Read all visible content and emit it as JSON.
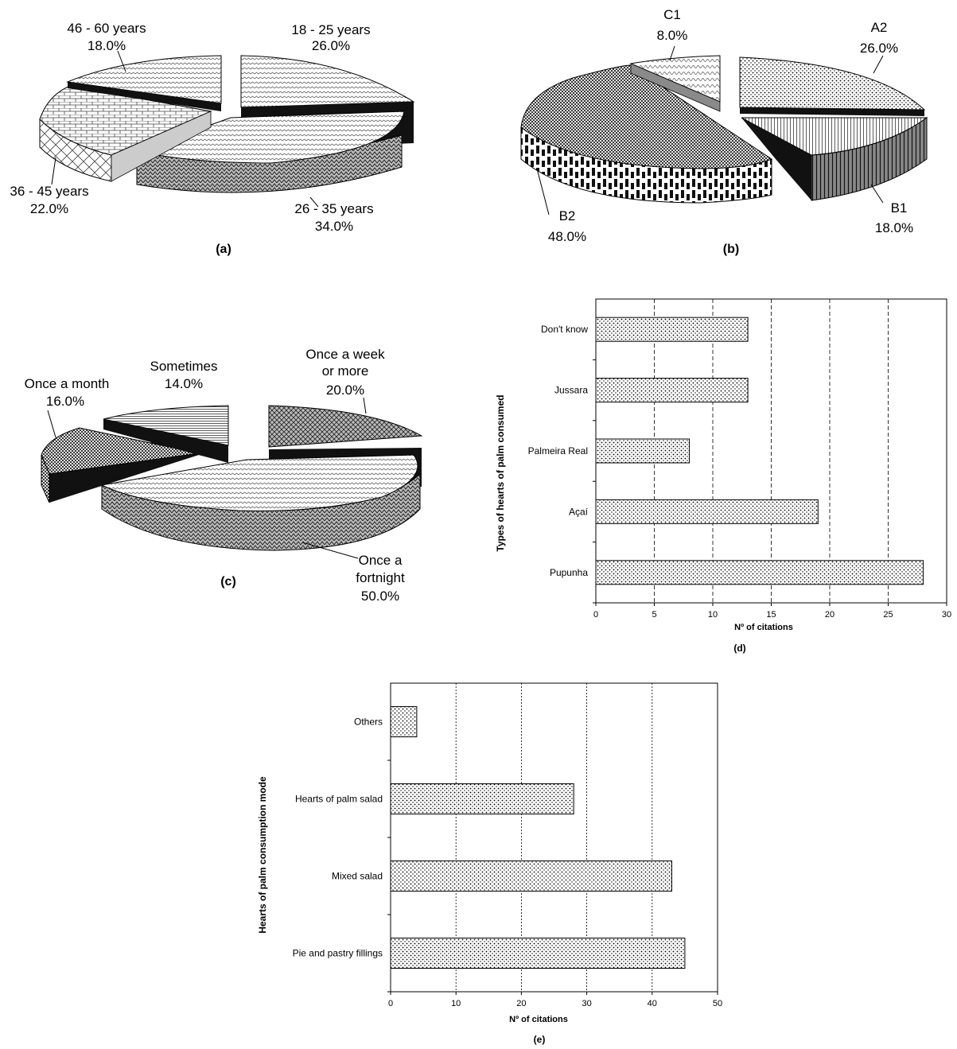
{
  "chart_data": [
    {
      "type": "pie",
      "caption": "(a)",
      "categories": [
        "18 - 25 years",
        "26 - 35 years",
        "36 - 45 years",
        "46 - 60 years"
      ],
      "values": [
        26.0,
        34.0,
        22.0,
        18.0
      ],
      "value_labels": [
        "26.0%",
        "34.0%",
        "22.0%",
        "18.0%"
      ],
      "style": "3D exploded pie, hatched patterns"
    },
    {
      "type": "pie",
      "caption": "(b)",
      "categories": [
        "A2",
        "B1",
        "B2",
        "C1"
      ],
      "values": [
        26.0,
        18.0,
        48.0,
        8.0
      ],
      "value_labels": [
        "26.0%",
        "18.0%",
        "48.0%",
        "8.0%"
      ],
      "style": "3D exploded pie, hatched patterns"
    },
    {
      "type": "pie",
      "caption": "(c)",
      "categories": [
        "Once a week or more",
        "Once a fortnight",
        "Once a month",
        "Sometimes"
      ],
      "label_lines": [
        [
          "Once a week",
          "or more"
        ],
        [
          "Once a",
          "fortnight"
        ],
        [
          "Once a month"
        ],
        [
          "Sometimes"
        ]
      ],
      "values": [
        20.0,
        50.0,
        16.0,
        14.0
      ],
      "value_labels": [
        "20.0%",
        "50.0%",
        "16.0%",
        "14.0%"
      ],
      "style": "3D exploded pie, hatched patterns"
    },
    {
      "type": "bar",
      "orientation": "horizontal",
      "caption": "(d)",
      "categories": [
        "Pupunha",
        "Açaí",
        "Palmeira Real",
        "Jussara",
        "Don't know"
      ],
      "values": [
        28,
        19,
        8,
        13,
        13
      ],
      "xlabel": "Nº of citations",
      "ylabel": "Types of hearts of palm consumed",
      "xlim": [
        0,
        30
      ],
      "xticks": [
        0,
        5,
        10,
        15,
        20,
        25,
        30
      ],
      "grid": "vertical dashed"
    },
    {
      "type": "bar",
      "orientation": "horizontal",
      "caption": "(e)",
      "categories": [
        "Pie and pastry fillings",
        "Mixed salad",
        "Hearts of palm salad",
        "Others"
      ],
      "values": [
        45,
        43,
        28,
        4
      ],
      "xlabel": "Nº of citations",
      "ylabel": "Hearts of palm consumption mode",
      "xlim": [
        0,
        50
      ],
      "xticks": [
        0,
        10,
        20,
        30,
        40,
        50
      ],
      "grid": "vertical dotted"
    }
  ]
}
